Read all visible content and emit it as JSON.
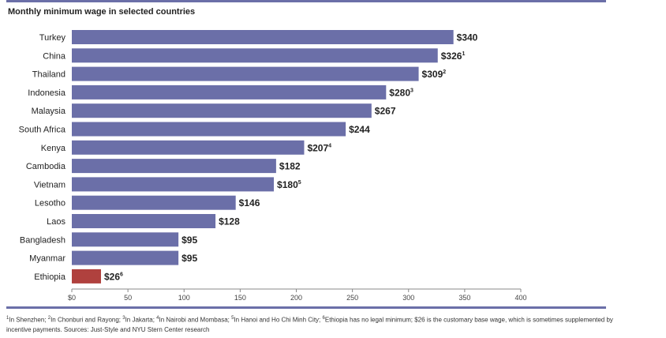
{
  "title": "Monthly minimum wage in selected countries",
  "colors": {
    "bar": "#6b6fa8",
    "highlight": "#b0413e",
    "rule": "#6b6fa8",
    "axis": "#888888"
  },
  "footnote": {
    "notes": [
      {
        "mark": "1",
        "text": "In Shenzhen; "
      },
      {
        "mark": "2",
        "text": "In Chonburi and Rayong; "
      },
      {
        "mark": "3",
        "text": "In Jakarta; "
      },
      {
        "mark": "4",
        "text": "In Nairobi and Mombasa; "
      },
      {
        "mark": "5",
        "text": "In Hanoi and Ho Chi Minh City; "
      },
      {
        "mark": "6",
        "text": "Ethiopia has no legal minimum; $26 is the customary base wage, which is sometimes supplemented by incentive payments. Sources: Just-Style and NYU Stern Center research"
      }
    ]
  },
  "chart_data": {
    "type": "bar",
    "orientation": "horizontal",
    "title": "Monthly minimum wage in selected countries",
    "categories": [
      "Turkey",
      "China",
      "Thailand",
      "Indonesia",
      "Malaysia",
      "South Africa",
      "Kenya",
      "Cambodia",
      "Vietnam",
      "Lesotho",
      "Laos",
      "Bangladesh",
      "Myanmar",
      "Ethiopia"
    ],
    "values": [
      340,
      326,
      309,
      280,
      267,
      244,
      207,
      182,
      180,
      146,
      128,
      95,
      95,
      26
    ],
    "labels": [
      "$340",
      "$326",
      "$309",
      "$280",
      "$267",
      "$244",
      "$207",
      "$182",
      "$180",
      "$146",
      "$128",
      "$95",
      "$95",
      "$26"
    ],
    "label_marks": [
      "",
      "1",
      "2",
      "3",
      "",
      "",
      "4",
      "",
      "5",
      "",
      "",
      "",
      "",
      "6"
    ],
    "highlight": [
      "Ethiopia"
    ],
    "xlim": [
      0,
      400
    ],
    "xticks": [
      0,
      50,
      100,
      150,
      200,
      250,
      300,
      350,
      400
    ],
    "xtick_labels": [
      "$0",
      "50",
      "100",
      "150",
      "200",
      "250",
      "300",
      "350",
      "400"
    ],
    "grid": false,
    "legend": "none"
  }
}
